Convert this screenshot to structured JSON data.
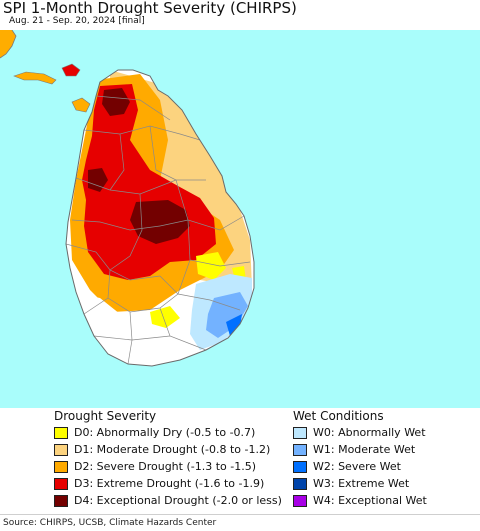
{
  "title": "SPI 1-Month Drought Severity (CHIRPS)",
  "subtitle": "Aug. 21 - Sep. 20, 2024 [final]",
  "colors": {
    "ocean": "#a9fdfb",
    "land_neutral": "#ffffff",
    "boundary": "#7a7a7a",
    "india_land": "#ffad00"
  },
  "legend": {
    "drought": {
      "heading": "Drought Severity",
      "items": [
        {
          "label": "D0: Abnormally Dry (-0.5 to -0.7)",
          "color": "#ffff00"
        },
        {
          "label": "D1: Moderate Drought (-0.8 to -1.2)",
          "color": "#fcd37f"
        },
        {
          "label": "D2: Severe Drought (-1.3 to -1.5)",
          "color": "#ffaa00"
        },
        {
          "label": "D3: Extreme Drought (-1.6 to -1.9)",
          "color": "#e60000"
        },
        {
          "label": "D4: Exceptional Drought (-2.0 or less)",
          "color": "#730000"
        }
      ]
    },
    "wet": {
      "heading": "Wet Conditions",
      "items": [
        {
          "label": "W0: Abnormally Wet",
          "color": "#bee8ff"
        },
        {
          "label": "W1: Moderate Wet",
          "color": "#73b2ff"
        },
        {
          "label": "W2: Severe Wet",
          "color": "#0070ff"
        },
        {
          "label": "W3: Extreme Wet",
          "color": "#0044aa"
        },
        {
          "label": "W4: Exceptional Wet",
          "color": "#a800e6"
        }
      ]
    }
  },
  "source": "Source: CHIRPS, UCSB, Climate Hazards Center"
}
